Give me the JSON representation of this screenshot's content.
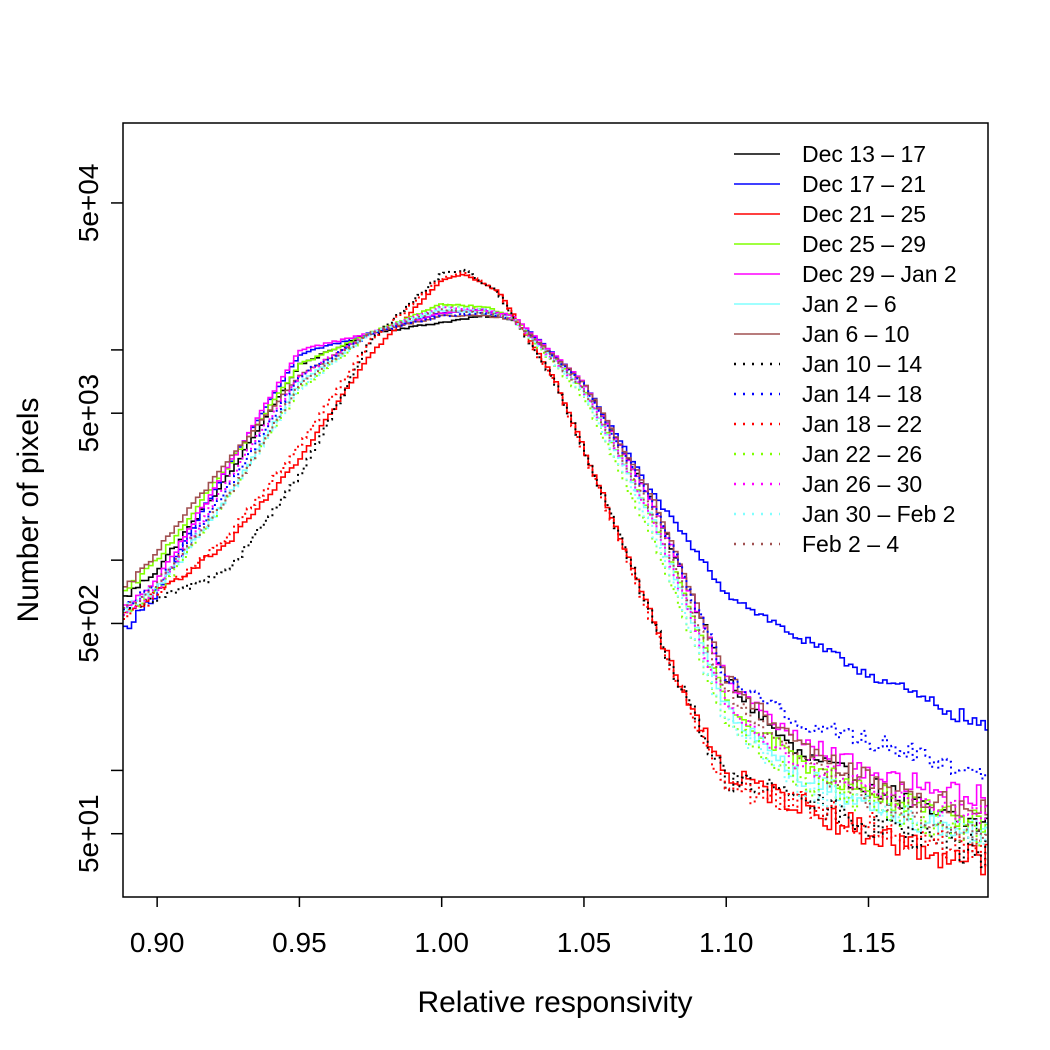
{
  "chart_data": {
    "type": "line",
    "step": true,
    "title": "",
    "xlabel": "Relative responsivity",
    "ylabel": "Number of pixels",
    "y_scale": "log",
    "xlim": [
      0.888,
      1.192
    ],
    "ylim": [
      25,
      120000
    ],
    "x_ticks": [
      0.9,
      0.95,
      1.0,
      1.05,
      1.1,
      1.15
    ],
    "x_tick_labels": [
      "0.90",
      "0.95",
      "1.00",
      "1.05",
      "1.10",
      "1.15"
    ],
    "y_ticks_labeled": [
      50,
      500,
      5000,
      50000
    ],
    "y_tick_labels": [
      "5e+01",
      "5e+02",
      "5e+03",
      "5e+04"
    ],
    "y_ticks_minor": [
      100,
      1000,
      10000
    ],
    "legend_position": "top-right",
    "grid": false,
    "series": [
      {
        "name": "Dec 13 – 17",
        "color": "#000000",
        "dash": "solid",
        "x": [
          0.888,
          0.9,
          0.925,
          0.95,
          0.975,
          1.0,
          1.015,
          1.025,
          1.05,
          1.075,
          1.1,
          1.125,
          1.15,
          1.175,
          1.192
        ],
        "y": [
          650,
          900,
          2500,
          8500,
          12000,
          13500,
          14500,
          14000,
          7000,
          1800,
          270,
          120,
          85,
          60,
          55
        ]
      },
      {
        "name": "Dec 17 – 21",
        "color": "#0000ff",
        "dash": "solid",
        "x": [
          0.888,
          0.9,
          0.925,
          0.95,
          0.975,
          1.0,
          1.015,
          1.025,
          1.05,
          1.075,
          1.1,
          1.125,
          1.15,
          1.175,
          1.192
        ],
        "y": [
          460,
          700,
          2800,
          9500,
          12000,
          15000,
          15500,
          14500,
          7000,
          2000,
          700,
          430,
          290,
          200,
          160
        ]
      },
      {
        "name": "Dec 21 – 25",
        "color": "#ff0000",
        "dash": "solid",
        "x": [
          0.888,
          0.9,
          0.925,
          0.95,
          0.975,
          1.0,
          1.008,
          1.02,
          1.04,
          1.06,
          1.08,
          1.1,
          1.125,
          1.15,
          1.175,
          1.192
        ],
        "y": [
          540,
          700,
          1200,
          3000,
          9500,
          21500,
          23000,
          19000,
          7200,
          1600,
          330,
          95,
          70,
          50,
          40,
          38
        ]
      },
      {
        "name": "Dec 25 – 29",
        "color": "#80ff00",
        "dash": "solid",
        "x": [
          0.888,
          0.9,
          0.925,
          0.95,
          0.975,
          1.0,
          1.015,
          1.025,
          1.05,
          1.075,
          1.1,
          1.125,
          1.15,
          1.175,
          1.192
        ],
        "y": [
          680,
          1000,
          2800,
          8500,
          12000,
          16500,
          16000,
          14500,
          6500,
          1500,
          210,
          110,
          80,
          60,
          55
        ]
      },
      {
        "name": "Dec 29 – Jan 2",
        "color": "#ff00ff",
        "dash": "solid",
        "x": [
          0.888,
          0.9,
          0.925,
          0.95,
          0.975,
          1.0,
          1.015,
          1.025,
          1.05,
          1.075,
          1.1,
          1.125,
          1.15,
          1.175,
          1.192
        ],
        "y": [
          580,
          800,
          2800,
          10000,
          12000,
          15000,
          15500,
          14500,
          7000,
          1800,
          270,
          140,
          100,
          80,
          75
        ]
      },
      {
        "name": "Jan 2 – 6",
        "color": "#80ffff",
        "dash": "solid",
        "x": [
          0.888,
          0.9,
          0.925,
          0.95,
          0.975,
          1.0,
          1.015,
          1.025,
          1.05,
          1.075,
          1.1,
          1.125,
          1.15,
          1.175,
          1.192
        ],
        "y": [
          560,
          720,
          2000,
          7000,
          12000,
          15500,
          15000,
          14000,
          6500,
          1500,
          200,
          95,
          70,
          55,
          50
        ]
      },
      {
        "name": "Jan 6 – 10",
        "color": "#a05050",
        "dash": "solid",
        "x": [
          0.888,
          0.9,
          0.925,
          0.95,
          0.975,
          1.0,
          1.015,
          1.025,
          1.05,
          1.075,
          1.1,
          1.125,
          1.15,
          1.175,
          1.192
        ],
        "y": [
          700,
          1100,
          3000,
          7500,
          12000,
          14500,
          14500,
          14000,
          7000,
          1900,
          280,
          130,
          90,
          70,
          65
        ]
      },
      {
        "name": "Jan 10 – 14",
        "color": "#000000",
        "dash": "dotted",
        "x": [
          0.888,
          0.9,
          0.925,
          0.95,
          0.975,
          1.0,
          1.008,
          1.02,
          1.04,
          1.06,
          1.08,
          1.1,
          1.125,
          1.15,
          1.175,
          1.192
        ],
        "y": [
          560,
          650,
          900,
          2500,
          11000,
          23000,
          24000,
          18500,
          7000,
          1600,
          330,
          90,
          75,
          55,
          45,
          40
        ]
      },
      {
        "name": "Jan 14 – 18",
        "color": "#0000ff",
        "dash": "dotted",
        "x": [
          0.888,
          0.9,
          0.925,
          0.95,
          0.975,
          1.0,
          1.015,
          1.025,
          1.05,
          1.075,
          1.1,
          1.125,
          1.15,
          1.175,
          1.192
        ],
        "y": [
          600,
          760,
          2200,
          7500,
          12000,
          14500,
          15000,
          14000,
          6800,
          1800,
          280,
          170,
          140,
          110,
          95
        ]
      },
      {
        "name": "Jan 18 – 22",
        "color": "#ff0000",
        "dash": "dotted",
        "x": [
          0.888,
          0.9,
          0.925,
          0.95,
          0.975,
          1.0,
          1.008,
          1.02,
          1.04,
          1.06,
          1.08,
          1.1,
          1.125,
          1.15,
          1.175,
          1.192
        ],
        "y": [
          540,
          680,
          1300,
          3500,
          11000,
          22000,
          23500,
          18800,
          7000,
          1550,
          320,
          85,
          70,
          55,
          45,
          40
        ]
      },
      {
        "name": "Jan 22 – 26",
        "color": "#80ff00",
        "dash": "dotted",
        "x": [
          0.888,
          0.9,
          0.925,
          0.95,
          0.975,
          1.0,
          1.015,
          1.025,
          1.05,
          1.075,
          1.1,
          1.125,
          1.15,
          1.175,
          1.192
        ],
        "y": [
          560,
          700,
          2000,
          6500,
          12000,
          16500,
          15500,
          14000,
          6000,
          1200,
          170,
          90,
          70,
          55,
          50
        ]
      },
      {
        "name": "Jan 26 – 30",
        "color": "#ff00ff",
        "dash": "dotted",
        "x": [
          0.888,
          0.9,
          0.925,
          0.95,
          0.975,
          1.0,
          1.015,
          1.025,
          1.05,
          1.075,
          1.1,
          1.125,
          1.15,
          1.175,
          1.192
        ],
        "y": [
          560,
          720,
          2400,
          7500,
          12000,
          16000,
          15500,
          14000,
          6500,
          1500,
          200,
          110,
          80,
          65,
          60
        ]
      },
      {
        "name": "Jan 30 – Feb 2",
        "color": "#80ffff",
        "dash": "dotted",
        "x": [
          0.888,
          0.9,
          0.925,
          0.95,
          0.975,
          1.0,
          1.015,
          1.025,
          1.05,
          1.075,
          1.1,
          1.125,
          1.15,
          1.175,
          1.192
        ],
        "y": [
          580,
          740,
          2000,
          6500,
          12000,
          16000,
          15500,
          14000,
          6200,
          1300,
          170,
          85,
          65,
          55,
          50
        ]
      },
      {
        "name": "Feb 2 – 4",
        "color": "#a05050",
        "dash": "dotted",
        "x": [
          0.888,
          0.9,
          0.925,
          0.95,
          0.975,
          1.0,
          1.015,
          1.025,
          1.05,
          1.075,
          1.1,
          1.125,
          1.15,
          1.175,
          1.192
        ],
        "y": [
          600,
          760,
          2000,
          6800,
          12000,
          15500,
          15000,
          14000,
          6500,
          1600,
          230,
          110,
          75,
          55,
          50
        ]
      }
    ]
  }
}
